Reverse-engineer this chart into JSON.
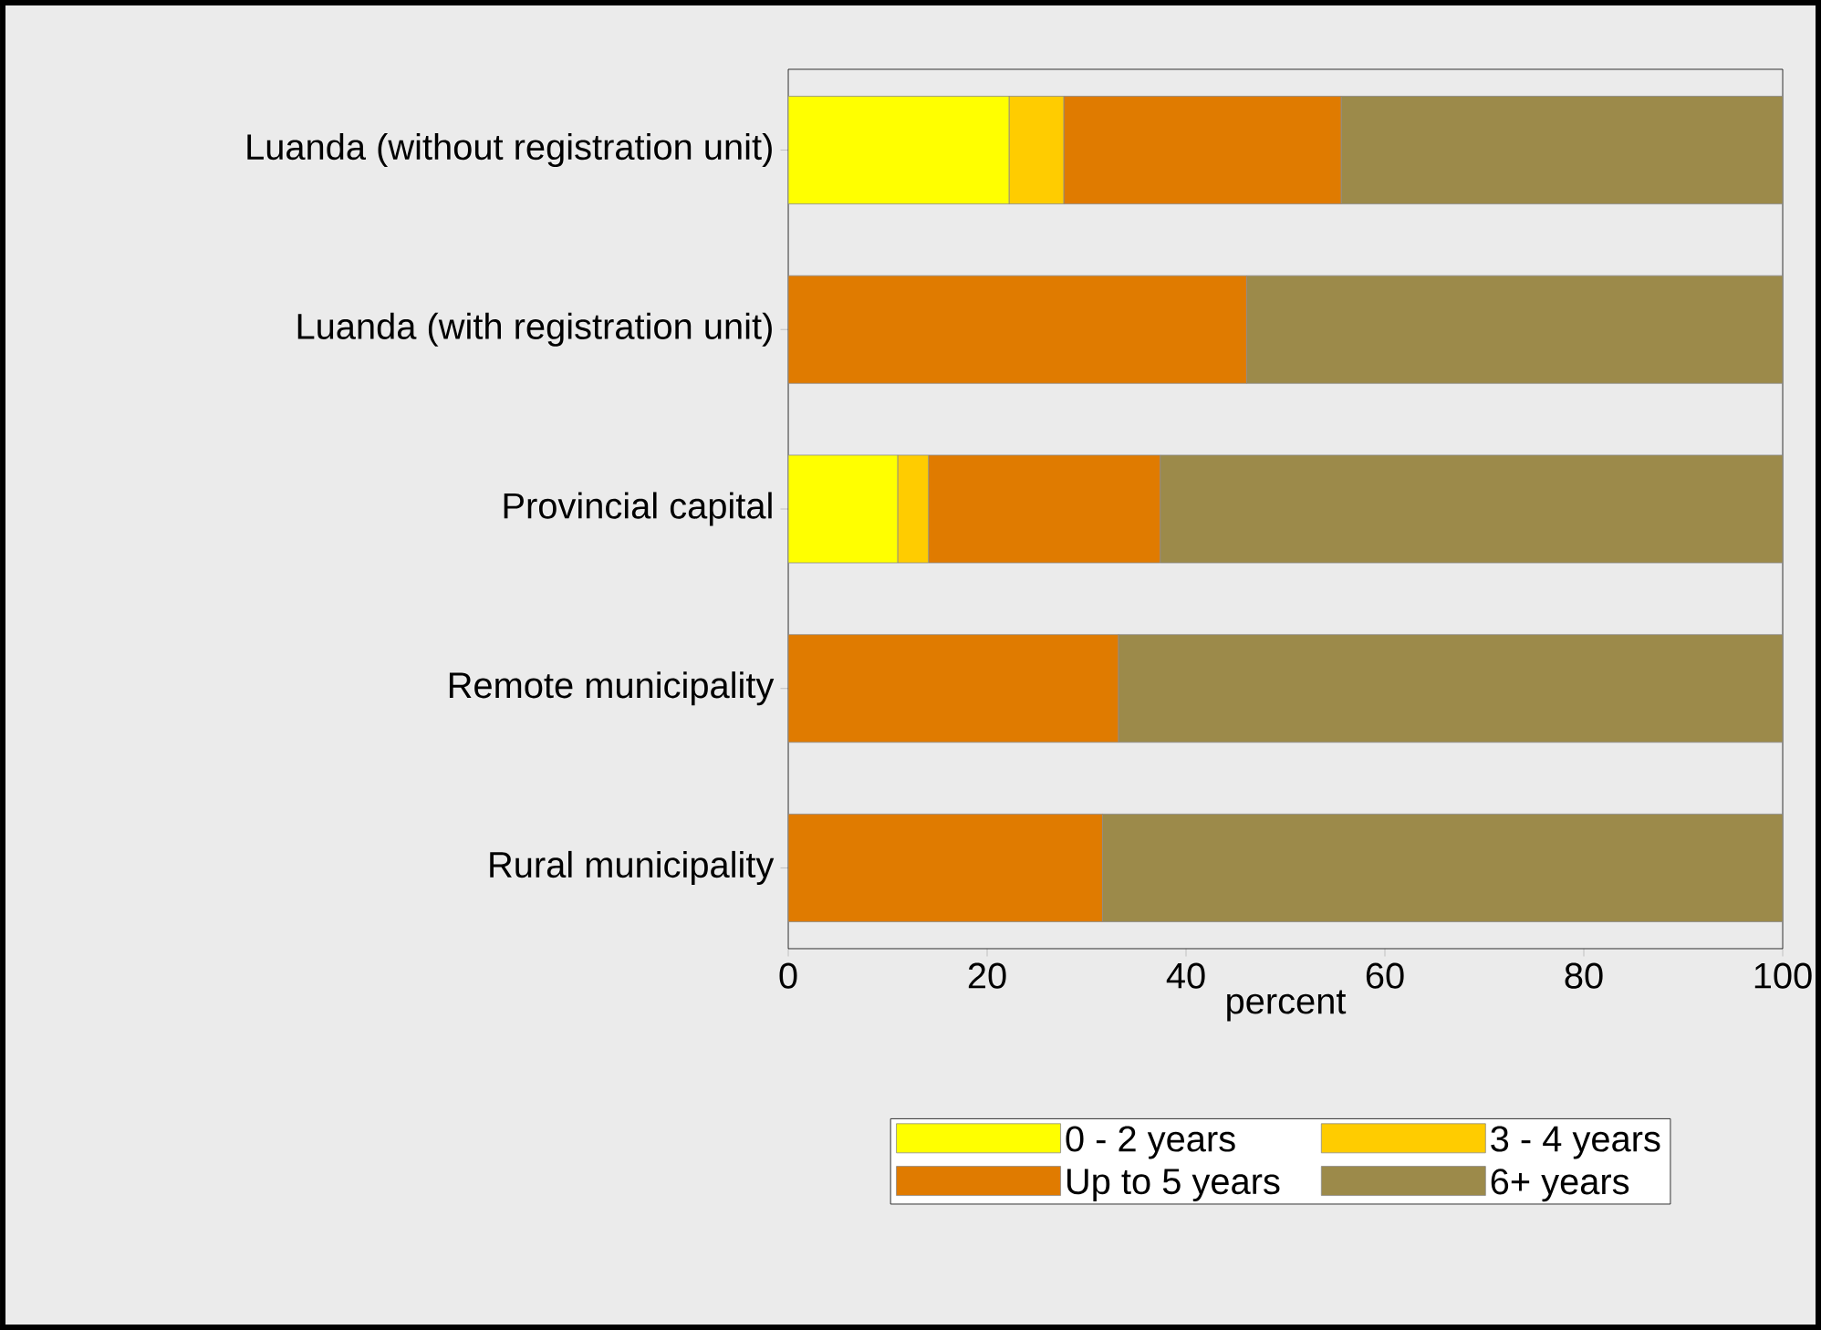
{
  "chart_data": {
    "type": "bar",
    "orientation": "horizontal",
    "stacked": true,
    "xlabel": "percent",
    "categories": [
      "Luanda (without registration unit)",
      "Luanda (with registration unit)",
      "Provincial capital",
      "Remote municipality",
      "Rural municipality"
    ],
    "series": [
      {
        "name": "0 - 2 years",
        "color": "#ffff00",
        "values": [
          22.2,
          0,
          11.0,
          0,
          0
        ]
      },
      {
        "name": "3 - 4 years",
        "color": "#ffcc00",
        "values": [
          5.5,
          0,
          3.1,
          0,
          0
        ]
      },
      {
        "name": "Up to 5 years",
        "color": "#e07b00",
        "values": [
          27.9,
          46.1,
          23.3,
          33.2,
          31.6
        ]
      },
      {
        "name": "6+ years",
        "color": "#9c8a4a",
        "values": [
          44.4,
          53.9,
          62.6,
          66.8,
          68.4
        ]
      }
    ],
    "xlim": [
      0,
      100
    ],
    "xticks": [
      0,
      20,
      40,
      60,
      80,
      100
    ],
    "grid": false,
    "legend": "bottom"
  }
}
